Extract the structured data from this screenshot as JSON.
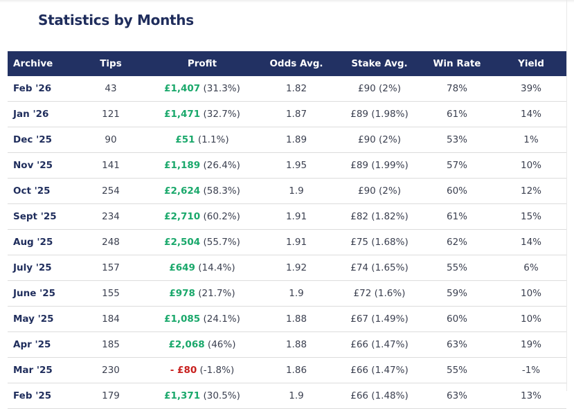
{
  "title": "Statistics by Months",
  "colors": {
    "header_bg": "#223163",
    "positive": "#1aa86b",
    "negative": "#c8201e",
    "title": "#1f2d5c"
  },
  "columns": [
    "Archive",
    "Tips",
    "Profit",
    "Odds Avg.",
    "Stake Avg.",
    "Win Rate",
    "Yield"
  ],
  "rows": [
    {
      "archive": "Feb '26",
      "tips": "43",
      "profit": "£1,407",
      "profit_pct": "(31.3%)",
      "negative": false,
      "odds": "1.82",
      "stake": "£90 (2%)",
      "win_rate": "78%",
      "yield": "39%"
    },
    {
      "archive": "Jan '26",
      "tips": "121",
      "profit": "£1,471",
      "profit_pct": "(32.7%)",
      "negative": false,
      "odds": "1.87",
      "stake": "£89 (1.98%)",
      "win_rate": "61%",
      "yield": "14%"
    },
    {
      "archive": "Dec '25",
      "tips": "90",
      "profit": "£51",
      "profit_pct": "(1.1%)",
      "negative": false,
      "odds": "1.89",
      "stake": "£90 (2%)",
      "win_rate": "53%",
      "yield": "1%"
    },
    {
      "archive": "Nov '25",
      "tips": "141",
      "profit": "£1,189",
      "profit_pct": "(26.4%)",
      "negative": false,
      "odds": "1.95",
      "stake": "£89 (1.99%)",
      "win_rate": "57%",
      "yield": "10%"
    },
    {
      "archive": "Oct '25",
      "tips": "254",
      "profit": "£2,624",
      "profit_pct": "(58.3%)",
      "negative": false,
      "odds": "1.9",
      "stake": "£90 (2%)",
      "win_rate": "60%",
      "yield": "12%"
    },
    {
      "archive": "Sept '25",
      "tips": "234",
      "profit": "£2,710",
      "profit_pct": "(60.2%)",
      "negative": false,
      "odds": "1.91",
      "stake": "£82 (1.82%)",
      "win_rate": "61%",
      "yield": "15%"
    },
    {
      "archive": "Aug '25",
      "tips": "248",
      "profit": "£2,504",
      "profit_pct": "(55.7%)",
      "negative": false,
      "odds": "1.91",
      "stake": "£75 (1.68%)",
      "win_rate": "62%",
      "yield": "14%"
    },
    {
      "archive": "July '25",
      "tips": "157",
      "profit": "£649",
      "profit_pct": "(14.4%)",
      "negative": false,
      "odds": "1.92",
      "stake": "£74 (1.65%)",
      "win_rate": "55%",
      "yield": "6%"
    },
    {
      "archive": "June '25",
      "tips": "155",
      "profit": "£978",
      "profit_pct": "(21.7%)",
      "negative": false,
      "odds": "1.9",
      "stake": "£72 (1.6%)",
      "win_rate": "59%",
      "yield": "10%"
    },
    {
      "archive": "May '25",
      "tips": "184",
      "profit": "£1,085",
      "profit_pct": "(24.1%)",
      "negative": false,
      "odds": "1.88",
      "stake": "£67 (1.49%)",
      "win_rate": "60%",
      "yield": "10%"
    },
    {
      "archive": "Apr '25",
      "tips": "185",
      "profit": "£2,068",
      "profit_pct": "(46%)",
      "negative": false,
      "odds": "1.88",
      "stake": "£66 (1.47%)",
      "win_rate": "63%",
      "yield": "19%"
    },
    {
      "archive": "Mar '25",
      "tips": "230",
      "profit": "- £80",
      "profit_pct": "(-1.8%)",
      "negative": true,
      "odds": "1.86",
      "stake": "£66 (1.47%)",
      "win_rate": "55%",
      "yield": "-1%"
    },
    {
      "archive": "Feb '25",
      "tips": "179",
      "profit": "£1,371",
      "profit_pct": "(30.5%)",
      "negative": false,
      "odds": "1.9",
      "stake": "£66 (1.48%)",
      "win_rate": "63%",
      "yield": "13%"
    }
  ]
}
